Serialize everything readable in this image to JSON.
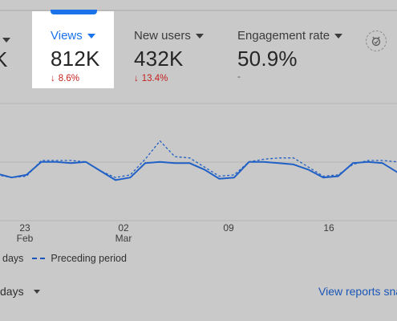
{
  "metrics": [
    {
      "label": "",
      "value": "K",
      "delta": ""
    },
    {
      "label": "Views",
      "value": "812K",
      "delta": "8.6%"
    },
    {
      "label": "New users",
      "value": "432K",
      "delta": "13.4%"
    },
    {
      "label": "Engagement rate",
      "value": "50.9%",
      "delta": "-"
    }
  ],
  "icons": {
    "metric_caret": "caret-down-icon",
    "delta_arrow": "arrow-down-icon",
    "insights": "insights-icon",
    "dropdown": "caret-down-icon"
  },
  "colors": {
    "accent": "#1a73e8",
    "line": "#2160c4",
    "negative": "#c5221f"
  },
  "chart_data": {
    "type": "line",
    "x_ticks": [
      {
        "day": "23",
        "month": "Feb"
      },
      {
        "day": "02",
        "month": "Mar"
      },
      {
        "day": "09",
        "month": ""
      },
      {
        "day": "16",
        "month": ""
      }
    ],
    "series": [
      {
        "name": "days",
        "style": "solid",
        "values": [
          63,
          60,
          62,
          72,
          72,
          71,
          72,
          65,
          58,
          60,
          71,
          72,
          71,
          71,
          66,
          59,
          60,
          72,
          72,
          71,
          70,
          66,
          60,
          61,
          71,
          72,
          71,
          64
        ]
      },
      {
        "name": "Preceding period",
        "style": "dashed",
        "values": [
          62,
          60,
          61,
          73,
          73,
          73,
          72,
          65,
          60,
          62,
          74,
          88,
          76,
          75,
          68,
          61,
          62,
          72,
          74,
          75,
          75,
          68,
          61,
          62,
          70,
          73,
          73,
          72
        ]
      }
    ],
    "grid": true,
    "legend_position": "bottom-left"
  },
  "legend": {
    "current_label": "days",
    "preceding_label": "Preceding period"
  },
  "footer": {
    "range_label": "days",
    "link_label": "View reports sna"
  }
}
